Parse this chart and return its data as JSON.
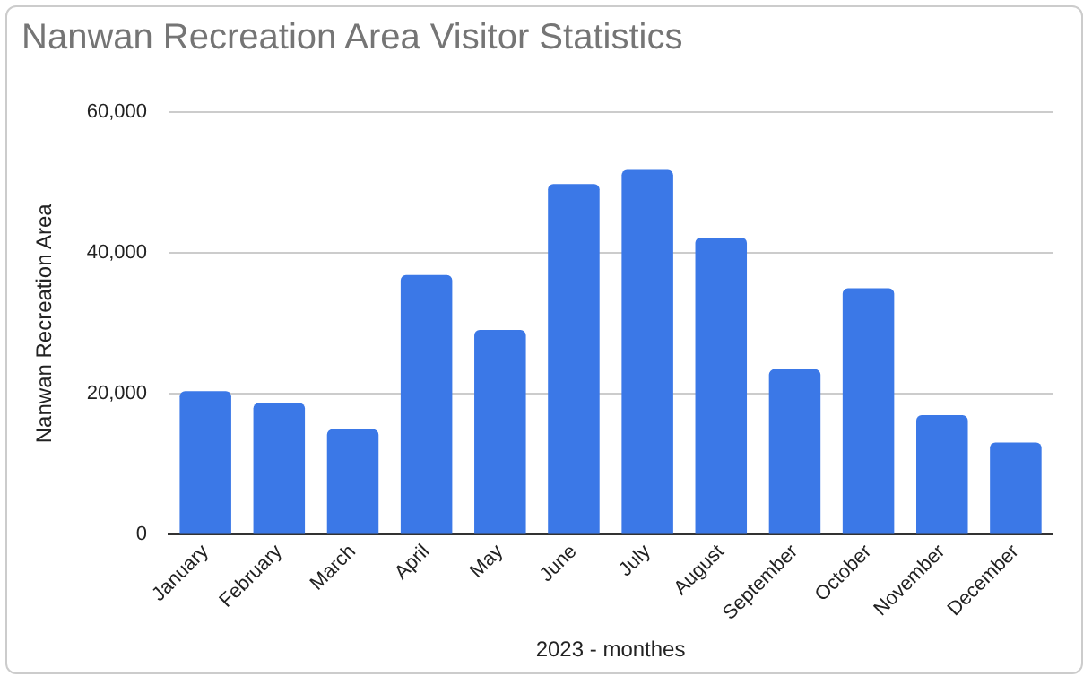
{
  "chart_data": {
    "type": "bar",
    "title": "Nanwan Recreation Area Visitor Statistics",
    "xlabel": "2023 - monthes",
    "ylabel": "Nanwan Recreation Area",
    "categories": [
      "January",
      "February",
      "March",
      "April",
      "May",
      "June",
      "July",
      "August",
      "September",
      "October",
      "November",
      "December"
    ],
    "values": [
      20400,
      18700,
      15000,
      36900,
      29100,
      49800,
      51800,
      42200,
      23500,
      35000,
      17000,
      13100
    ],
    "color": "#3b78e7",
    "ylim": [
      0,
      60000
    ],
    "yticks": [
      {
        "value": 0,
        "label": "0"
      },
      {
        "value": 20000,
        "label": "20,000"
      },
      {
        "value": 40000,
        "label": "40,000"
      },
      {
        "value": 60000,
        "label": "60,000"
      }
    ],
    "grid": "y",
    "legend": false
  }
}
